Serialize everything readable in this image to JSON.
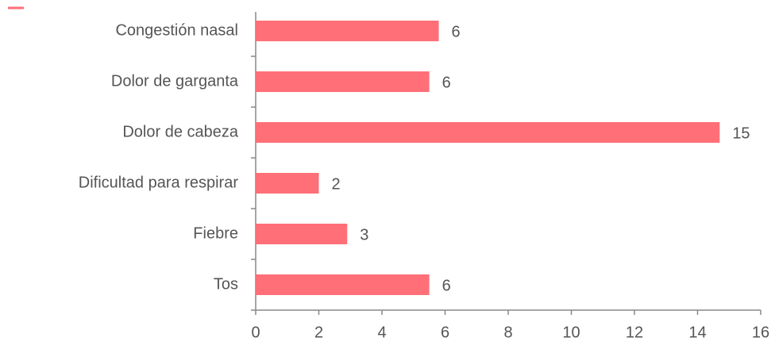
{
  "chart_data": {
    "type": "hbar",
    "categories": [
      "Congestión nasal",
      "Dolor de garganta",
      "Dolor de cabeza",
      "Dificultad para respirar",
      "Fiebre",
      "Tos"
    ],
    "values": [
      5.8,
      5.5,
      14.7,
      2,
      2.9,
      5.5
    ],
    "value_labels": [
      "6",
      "6",
      "15",
      "2",
      "3",
      "6"
    ],
    "color": "#ff6f77",
    "xlim": [
      0,
      16
    ],
    "xticks": [
      0,
      2,
      4,
      6,
      8,
      10,
      12,
      14,
      16
    ]
  }
}
